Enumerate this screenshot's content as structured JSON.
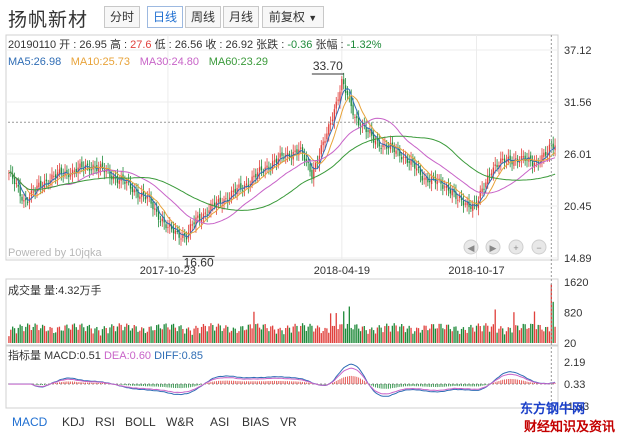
{
  "header": {
    "title": "扬帆新材",
    "tabs": [
      {
        "label": "分时",
        "active": false
      },
      {
        "label": "日线",
        "active": true
      },
      {
        "label": "周线",
        "active": false
      },
      {
        "label": "月线",
        "active": false
      }
    ],
    "adjust_label": "前复权",
    "adjust_arrow": "▼"
  },
  "ohlc_info": {
    "date": "20190110",
    "open_label": "开 :",
    "open": "26.95",
    "high_label": "高 :",
    "high": "27.6",
    "low_label": "低 :",
    "low": "26.56",
    "close_label": "收 :",
    "close": "26.92",
    "change_label": "张跌 :",
    "change": "-0.36",
    "pct_label": "张幅 :",
    "pct": "-1.32%"
  },
  "ma_legend": [
    {
      "text": "MA5:26.98",
      "color": "#2f6db5"
    },
    {
      "text": "MA10:25.73",
      "color": "#e8a33a"
    },
    {
      "text": "MA30:24.80",
      "color": "#c864c8"
    },
    {
      "text": "MA60:23.29",
      "color": "#3a9a3a"
    }
  ],
  "volume_label": "成交量 量:4.32万手",
  "macd_info": {
    "prefix": "指标量 MACD:0.51",
    "dea": "DEA:0.60",
    "diff": "DIFF:0.85"
  },
  "powered_by": "Powered by 10jqka",
  "indicator_tabs": [
    {
      "label": "MACD",
      "active": true
    },
    {
      "label": "KDJ",
      "active": false
    },
    {
      "label": "RSI",
      "active": false
    },
    {
      "label": "BOLL",
      "active": false
    },
    {
      "label": "W&R",
      "active": false
    },
    {
      "label": "ASI",
      "active": false
    },
    {
      "label": "BIAS",
      "active": false
    },
    {
      "label": "VR",
      "active": false
    }
  ],
  "watermark": {
    "line1": "东方钢牛网",
    "line2": "财经知识及资讯"
  },
  "colors": {
    "up": "#e0403c",
    "down": "#1f8a3a",
    "price_line": "#b0b0b0"
  },
  "chart_data": {
    "type": "candlestick",
    "price_axis": {
      "ticks": [
        "37.12",
        "31.56",
        "26.01",
        "20.45",
        "14.89"
      ],
      "ylim": [
        14.89,
        37.12
      ]
    },
    "x_ticks": [
      "2017-10-23",
      "2018-04-19",
      "2018-10-17"
    ],
    "annotations": [
      {
        "label": "33.70",
        "type": "high"
      },
      {
        "label": "16.60",
        "type": "low"
      }
    ],
    "price_keypoints": [
      {
        "i": 0,
        "p": 24.0
      },
      {
        "i": 8,
        "p": 21.0
      },
      {
        "i": 22,
        "p": 23.5
      },
      {
        "i": 45,
        "p": 24.8
      },
      {
        "i": 60,
        "p": 23.2
      },
      {
        "i": 75,
        "p": 21.0
      },
      {
        "i": 85,
        "p": 18.0
      },
      {
        "i": 95,
        "p": 17.2
      },
      {
        "i": 100,
        "p": 19.0
      },
      {
        "i": 110,
        "p": 20.5
      },
      {
        "i": 125,
        "p": 22.5
      },
      {
        "i": 140,
        "p": 25.0
      },
      {
        "i": 155,
        "p": 26.5
      },
      {
        "i": 162,
        "p": 24.0
      },
      {
        "i": 170,
        "p": 28.0
      },
      {
        "i": 178,
        "p": 33.7
      },
      {
        "i": 185,
        "p": 30.0
      },
      {
        "i": 195,
        "p": 27.5
      },
      {
        "i": 210,
        "p": 26.0
      },
      {
        "i": 222,
        "p": 23.5
      },
      {
        "i": 235,
        "p": 22.5
      },
      {
        "i": 240,
        "p": 21.0
      },
      {
        "i": 250,
        "p": 20.5
      },
      {
        "i": 258,
        "p": 24.5
      },
      {
        "i": 268,
        "p": 25.5
      },
      {
        "i": 282,
        "p": 25.2
      },
      {
        "i": 288,
        "p": 26.0
      },
      {
        "i": 290,
        "p": 27.0
      },
      {
        "i": 292,
        "p": 26.92
      }
    ],
    "volume_axis": {
      "ticks": [
        "1620",
        "820",
        "20"
      ],
      "ylim": [
        20,
        1620
      ]
    },
    "macd_axis": {
      "ticks": [
        "2.19",
        "0.33",
        "-1.53"
      ],
      "ylim": [
        -1.53,
        2.19
      ]
    },
    "series": [
      {
        "name": "MA5",
        "value": 26.98
      },
      {
        "name": "MA10",
        "value": 25.73
      },
      {
        "name": "MA30",
        "value": 24.8
      },
      {
        "name": "MA60",
        "value": 23.29
      }
    ],
    "macd_values": {
      "MACD": 0.51,
      "DEA": 0.6,
      "DIFF": 0.85
    }
  }
}
